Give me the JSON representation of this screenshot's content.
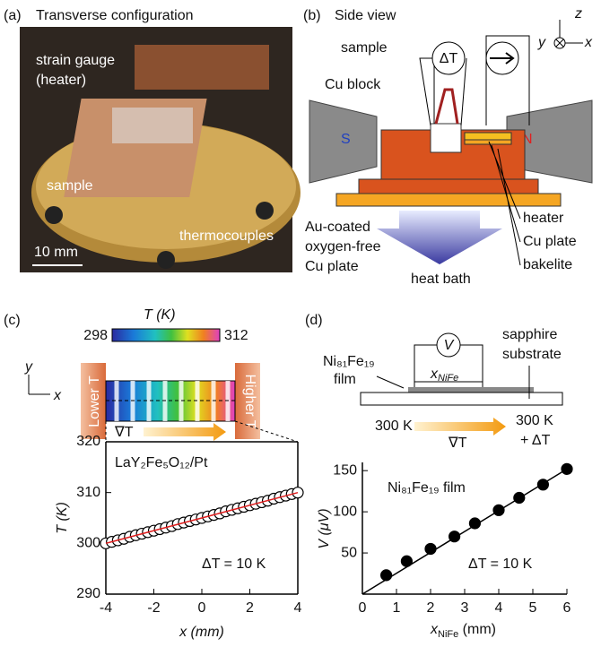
{
  "panels": {
    "a": {
      "label": "(a)",
      "title": "Transverse configuration",
      "annotations": [
        "strain gauge",
        "(heater)",
        "sample",
        "thermocouples",
        "10 mm"
      ]
    },
    "b": {
      "label": "(b)",
      "title": "Side view",
      "annotations": [
        "sample",
        "Cu block",
        "ΔT",
        "z",
        "y",
        "x",
        "S",
        "N",
        "Au-coated",
        "oxygen-free",
        "Cu plate",
        "heat bath",
        "heater",
        "Cu plate",
        "bakelite"
      ]
    },
    "c": {
      "label": "(c)",
      "colorbar_title": "T (K)",
      "colorbar_min": 298,
      "colorbar_max": 312,
      "annotations": [
        "y",
        "x",
        "Lower T",
        "Higher T",
        "∇T"
      ]
    },
    "d": {
      "label": "(d)",
      "annotations": [
        "V",
        "Ni₈₁Fe₁₉",
        "film",
        "x",
        "NiFe",
        "sapphire",
        "substrate",
        "300 K",
        "∇T",
        "300 K",
        "+ ΔT"
      ]
    }
  },
  "chart_data": [
    {
      "type": "scatter",
      "ylabel": "T (K)",
      "xlabel": "x (mm)",
      "annotations": [
        "LaY₂Fe₅O₁₂/Pt",
        "ΔT = 10 K"
      ],
      "xlim": [
        -4,
        4
      ],
      "ylim": [
        290,
        320
      ],
      "xticks": [
        -4,
        -2,
        0,
        2,
        4
      ],
      "yticks": [
        290,
        300,
        310,
        320
      ],
      "series": [
        {
          "type": "scatter",
          "color": "#ffffff",
          "x": [
            -4,
            -3.75,
            -3.5,
            -3.25,
            -3,
            -2.75,
            -2.5,
            -2.25,
            -2,
            -1.75,
            -1.5,
            -1.25,
            -1,
            -0.75,
            -0.5,
            -0.25,
            0,
            0.25,
            0.5,
            0.75,
            1,
            1.25,
            1.5,
            1.75,
            2,
            2.25,
            2.5,
            2.75,
            3,
            3.25,
            3.5,
            3.75,
            4
          ],
          "values": [
            300,
            300.3,
            300.6,
            300.9,
            301.3,
            301.6,
            301.9,
            302.2,
            302.5,
            302.8,
            303.1,
            303.4,
            303.8,
            304.1,
            304.4,
            304.7,
            305,
            305.3,
            305.6,
            305.9,
            306.3,
            306.6,
            306.9,
            307.2,
            307.5,
            307.8,
            308.1,
            308.4,
            308.8,
            309.1,
            309.4,
            309.7,
            310
          ]
        },
        {
          "type": "line",
          "color": "#e02020",
          "x": [
            -4,
            4
          ],
          "values": [
            300,
            310
          ]
        }
      ]
    },
    {
      "type": "scatter",
      "ylabel": "V (μV)",
      "xlabel": "x",
      "xlabel_sub": "NiFe",
      "xlabel_unit": " (mm)",
      "annotations": [
        "Ni₈₁Fe₁₉ film",
        "ΔT = 10 K"
      ],
      "xlim": [
        0,
        6
      ],
      "ylim": [
        0,
        160
      ],
      "xticks": [
        0,
        1,
        2,
        3,
        4,
        5,
        6
      ],
      "yticks": [
        50,
        100,
        150
      ],
      "series": [
        {
          "type": "line",
          "color": "#000000",
          "x": [
            0,
            6
          ],
          "values": [
            0,
            152
          ]
        },
        {
          "type": "scatter",
          "color": "#000000",
          "x": [
            0.7,
            1.3,
            2.0,
            2.7,
            3.3,
            4.0,
            4.6,
            5.3,
            6.0
          ],
          "values": [
            23,
            40,
            55,
            70,
            86,
            102,
            117,
            133,
            152
          ]
        }
      ]
    }
  ]
}
